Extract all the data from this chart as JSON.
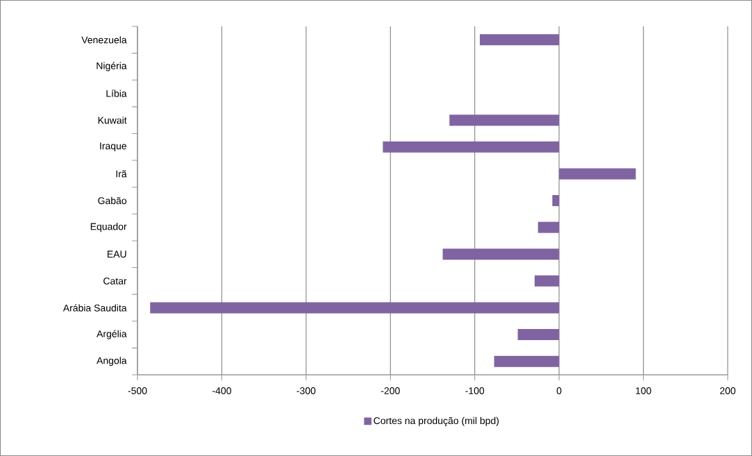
{
  "chart_data": {
    "type": "bar",
    "orientation": "horizontal",
    "categories": [
      "Venezuela",
      "Nigéria",
      "Líbia",
      "Kuwait",
      "Iraque",
      "Irã",
      "Gabão",
      "Equador",
      "EAU",
      "Catar",
      "Arábia Saudita",
      "Argélia",
      "Angola"
    ],
    "series": [
      {
        "name": "Cortes na produção (mil bpd)",
        "color": "#8064a2",
        "values": [
          -94,
          null,
          null,
          -130,
          -209,
          91,
          -8,
          -25,
          -138,
          -29,
          -485,
          -49,
          -77
        ]
      }
    ],
    "xlim": [
      -500,
      200
    ],
    "xticks": [
      -500,
      -400,
      -300,
      -200,
      -100,
      0,
      100,
      200
    ],
    "grid": "x",
    "legend": "bottom"
  }
}
